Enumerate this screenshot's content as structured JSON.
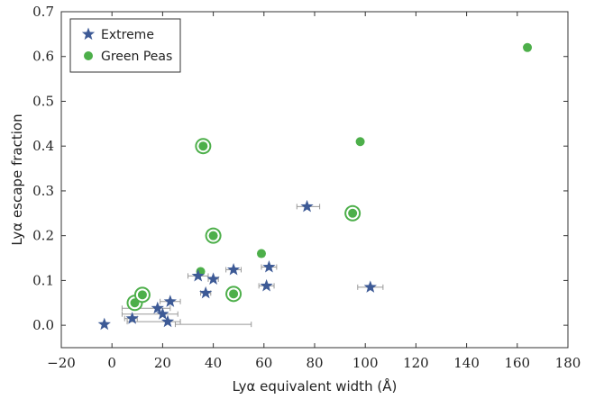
{
  "chart_data": {
    "type": "scatter",
    "xlabel": "Lyα equivalent width (Å)",
    "ylabel": "Lyα escape fraction",
    "xlim": [
      -20,
      180
    ],
    "ylim": [
      -0.05,
      0.7
    ],
    "xticks": [
      -20,
      0,
      20,
      40,
      60,
      80,
      100,
      120,
      140,
      160,
      180
    ],
    "yticks": [
      0.0,
      0.1,
      0.2,
      0.3,
      0.4,
      0.5,
      0.6,
      0.7
    ],
    "xtick_labels": [
      "−20",
      "0",
      "20",
      "40",
      "60",
      "80",
      "100",
      "120",
      "140",
      "160",
      "180"
    ],
    "ytick_labels": [
      "0.0",
      "0.1",
      "0.2",
      "0.3",
      "0.4",
      "0.5",
      "0.6",
      "0.7"
    ],
    "grid": false,
    "legend_position": "top-left",
    "colors": {
      "extreme": "#3d5a96",
      "green_peas": "#4daf4a",
      "errorbar": "#999999"
    },
    "series": [
      {
        "name": "Extreme",
        "marker": "star",
        "points": [
          {
            "x": -3,
            "y": 0.002,
            "xerr": [
              25,
              55
            ]
          },
          {
            "x": 8,
            "y": 0.015,
            "xerr": [
              5,
              10
            ]
          },
          {
            "x": 18,
            "y": 0.038,
            "xerr": [
              4,
              23
            ]
          },
          {
            "x": 20,
            "y": 0.025,
            "xerr": [
              4,
              26
            ]
          },
          {
            "x": 22,
            "y": 0.008,
            "xerr": [
              6,
              27
            ]
          },
          {
            "x": 23,
            "y": 0.053,
            "xerr": [
              19,
              27
            ]
          },
          {
            "x": 34,
            "y": 0.11,
            "xerr": [
              30,
              38
            ]
          },
          {
            "x": 37,
            "y": 0.072,
            "xerr": [
              35,
              39
            ]
          },
          {
            "x": 40,
            "y": 0.103,
            "xerr": [
              38,
              42
            ]
          },
          {
            "x": 48,
            "y": 0.124,
            "xerr": [
              45,
              51
            ]
          },
          {
            "x": 61,
            "y": 0.088,
            "xerr": [
              58,
              64
            ]
          },
          {
            "x": 62,
            "y": 0.13,
            "xerr": [
              59,
              65
            ]
          },
          {
            "x": 77,
            "y": 0.265,
            "xerr": [
              73,
              82
            ]
          },
          {
            "x": 102,
            "y": 0.085,
            "xerr": [
              97,
              107
            ]
          }
        ]
      },
      {
        "name": "Green Peas",
        "marker": "circle",
        "points": [
          {
            "x": 9,
            "y": 0.05,
            "ringed": true
          },
          {
            "x": 12,
            "y": 0.068,
            "ringed": true
          },
          {
            "x": 35,
            "y": 0.12,
            "ringed": false
          },
          {
            "x": 36,
            "y": 0.4,
            "ringed": true
          },
          {
            "x": 40,
            "y": 0.2,
            "ringed": true
          },
          {
            "x": 48,
            "y": 0.07,
            "ringed": true
          },
          {
            "x": 59,
            "y": 0.16,
            "ringed": false
          },
          {
            "x": 95,
            "y": 0.25,
            "ringed": true
          },
          {
            "x": 98,
            "y": 0.41,
            "ringed": false
          },
          {
            "x": 164,
            "y": 0.62,
            "ringed": false
          }
        ]
      }
    ]
  }
}
